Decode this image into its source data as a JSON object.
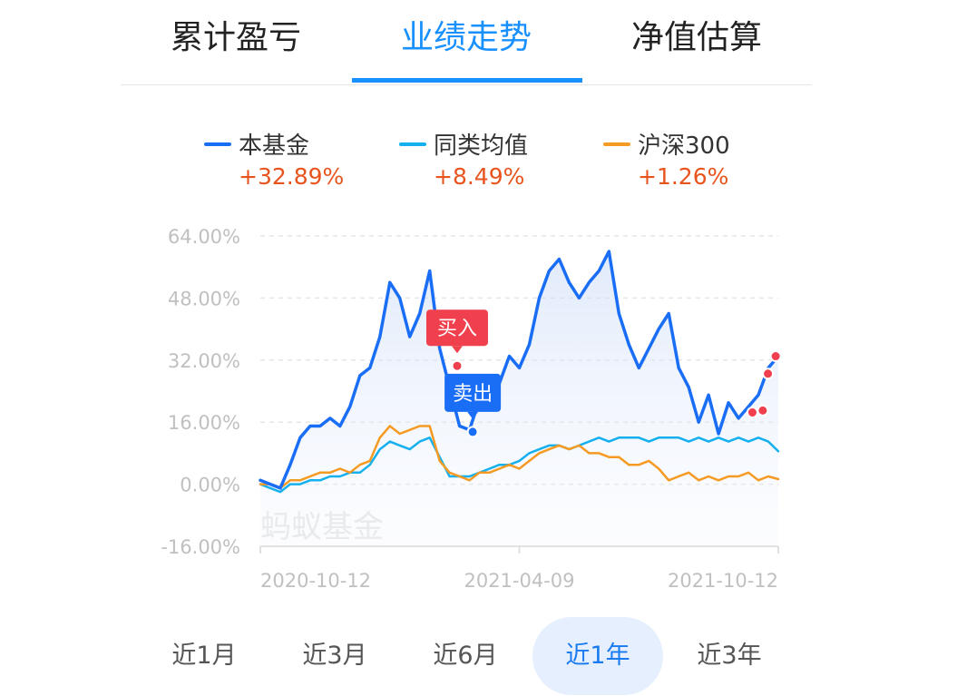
{
  "tabs": [
    {
      "label": "累计盈亏",
      "active": false
    },
    {
      "label": "业绩走势",
      "active": true
    },
    {
      "label": "净值估算",
      "active": false
    }
  ],
  "colors": {
    "accent": "#1890ff",
    "fund": "#1a6ef5",
    "category": "#17b0ee",
    "index": "#f59a23",
    "positive": "#e8541e",
    "buy": "#f0404e",
    "sell": "#1a6ef5"
  },
  "watermark": "蚂蚁基金",
  "markers": {
    "buy_label": "买入",
    "sell_label": "卖出"
  },
  "periods": [
    {
      "label": "近1月",
      "active": false
    },
    {
      "label": "近3月",
      "active": false
    },
    {
      "label": "近6月",
      "active": false
    },
    {
      "label": "近1年",
      "active": true
    },
    {
      "label": "近3年",
      "active": false
    }
  ],
  "chart_data": {
    "type": "line",
    "y_unit": "%",
    "ylim": [
      -16,
      64
    ],
    "yticks": [
      "64.00%",
      "48.00%",
      "32.00%",
      "16.00%",
      "0.00%",
      "-16.00%"
    ],
    "xticks": [
      "2020-10-12",
      "2021-04-09",
      "2021-10-12"
    ],
    "grid": true,
    "legend_position": "top",
    "series": [
      {
        "name": "本基金",
        "final": "+32.89%",
        "color": "#1a6ef5",
        "area": true,
        "values": [
          1,
          0,
          -1,
          5,
          12,
          15,
          15,
          17,
          15,
          20,
          28,
          30,
          38,
          52,
          48,
          38,
          44,
          55,
          35,
          25,
          15,
          14,
          22,
          21,
          26,
          33,
          30,
          36,
          48,
          55,
          58,
          52,
          48,
          52,
          55,
          60,
          44,
          36,
          30,
          35,
          40,
          44,
          30,
          25,
          16,
          23,
          13,
          21,
          17,
          20,
          23,
          30,
          33
        ]
      },
      {
        "name": "同类均值",
        "final": "+8.49%",
        "color": "#17b0ee",
        "area": false,
        "values": [
          0,
          -1,
          -2,
          0,
          0,
          1,
          1,
          2,
          2,
          3,
          3,
          5,
          9,
          11,
          10,
          9,
          11,
          12,
          7,
          2,
          2,
          2,
          3,
          4,
          5,
          5,
          6,
          8,
          9,
          10,
          10,
          9,
          10,
          11,
          12,
          11,
          12,
          12,
          12,
          11,
          12,
          12,
          12,
          11,
          12,
          11,
          12,
          11,
          12,
          11,
          12,
          11,
          8.5
        ]
      },
      {
        "name": "沪深300",
        "final": "+1.26%",
        "color": "#f59a23",
        "area": false,
        "values": [
          0,
          0,
          -1,
          1,
          1,
          2,
          3,
          3,
          4,
          3,
          5,
          6,
          12,
          15,
          13,
          14,
          15,
          15,
          6,
          3,
          2,
          1,
          3,
          3,
          4,
          5,
          4,
          6,
          8,
          9,
          10,
          9,
          10,
          8,
          8,
          7,
          7,
          5,
          5,
          6,
          4,
          1,
          2,
          3,
          1,
          2,
          1,
          2,
          2,
          3,
          1,
          2,
          1.3
        ]
      }
    ],
    "buy_points": [
      [
        0.38,
        30.5
      ],
      [
        0.95,
        18.5
      ],
      [
        0.97,
        19.0
      ],
      [
        0.98,
        28.5
      ],
      [
        0.995,
        33.0
      ]
    ],
    "sell_points": [
      [
        0.41,
        13.5
      ]
    ]
  }
}
